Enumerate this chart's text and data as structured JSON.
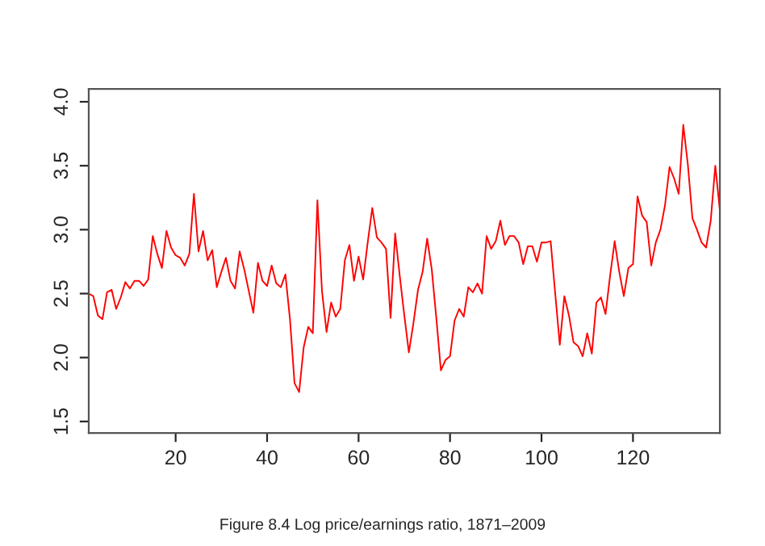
{
  "chart_data": {
    "type": "line",
    "annotations": [
      "Figure 8.4 Log price/earnings ratio, 1871–2009"
    ],
    "x": [
      1,
      2,
      3,
      4,
      5,
      6,
      7,
      8,
      9,
      10,
      11,
      12,
      13,
      14,
      15,
      16,
      17,
      18,
      19,
      20,
      21,
      22,
      23,
      24,
      25,
      26,
      27,
      28,
      29,
      30,
      31,
      32,
      33,
      34,
      35,
      36,
      37,
      38,
      39,
      40,
      41,
      42,
      43,
      44,
      45,
      46,
      47,
      48,
      49,
      50,
      51,
      52,
      53,
      54,
      55,
      56,
      57,
      58,
      59,
      60,
      61,
      62,
      63,
      64,
      65,
      66,
      67,
      68,
      69,
      70,
      71,
      72,
      73,
      74,
      75,
      76,
      77,
      78,
      79,
      80,
      81,
      82,
      83,
      84,
      85,
      86,
      87,
      88,
      89,
      90,
      91,
      92,
      93,
      94,
      95,
      96,
      97,
      98,
      99,
      100,
      101,
      102,
      103,
      104,
      105,
      106,
      107,
      108,
      109,
      110,
      111,
      112,
      113,
      114,
      115,
      116,
      117,
      118,
      119,
      120,
      121,
      122,
      123,
      124,
      125,
      126,
      127,
      128,
      129,
      130,
      131,
      132,
      133,
      134,
      135,
      136,
      137,
      138,
      139
    ],
    "series": [
      {
        "color": "#ff0000",
        "values": [
          2.5,
          2.48,
          2.33,
          2.3,
          2.51,
          2.53,
          2.38,
          2.47,
          2.59,
          2.54,
          2.6,
          2.6,
          2.56,
          2.61,
          2.95,
          2.81,
          2.7,
          2.99,
          2.86,
          2.8,
          2.78,
          2.72,
          2.81,
          3.28,
          2.83,
          2.99,
          2.76,
          2.84,
          2.55,
          2.67,
          2.78,
          2.6,
          2.54,
          2.83,
          2.69,
          2.52,
          2.35,
          2.74,
          2.6,
          2.56,
          2.72,
          2.58,
          2.55,
          2.65,
          2.3,
          1.8,
          1.73,
          2.08,
          2.24,
          2.19,
          3.23,
          2.52,
          2.2,
          2.43,
          2.32,
          2.38,
          2.76,
          2.88,
          2.6,
          2.79,
          2.61,
          2.9,
          3.17,
          2.94,
          2.9,
          2.85,
          2.31,
          2.97,
          2.64,
          2.33,
          2.04,
          2.27,
          2.53,
          2.67,
          2.93,
          2.69,
          2.31,
          1.9,
          1.98,
          2.01,
          2.29,
          2.38,
          2.32,
          2.55,
          2.51,
          2.58,
          2.5,
          2.95,
          2.85,
          2.91,
          3.07,
          2.88,
          2.95,
          2.95,
          2.9,
          2.73,
          2.87,
          2.87,
          2.75,
          2.9,
          2.9,
          2.91,
          2.5,
          2.1,
          2.48,
          2.33,
          2.12,
          2.09,
          2.01,
          2.19,
          2.03,
          2.43,
          2.47,
          2.34,
          2.64,
          2.91,
          2.67,
          2.48,
          2.7,
          2.73,
          3.26,
          3.11,
          3.06,
          2.72,
          2.9,
          3.0,
          3.19,
          3.49,
          3.4,
          3.28,
          3.82,
          3.51,
          3.09,
          3.0,
          2.9,
          2.86,
          3.07,
          3.5,
          3.15
        ]
      }
    ],
    "xlim": [
      1,
      139
    ],
    "ylim": [
      1.41,
      4.1
    ],
    "xticks": [
      20,
      40,
      60,
      80,
      100,
      120
    ],
    "yticks": [
      1.5,
      {
        "value": 2,
        "label": "2.0"
      },
      2.5,
      {
        "value": 3,
        "label": "3.0"
      },
      3.5,
      {
        "value": 4,
        "label": "4.0"
      }
    ],
    "grid": false
  }
}
